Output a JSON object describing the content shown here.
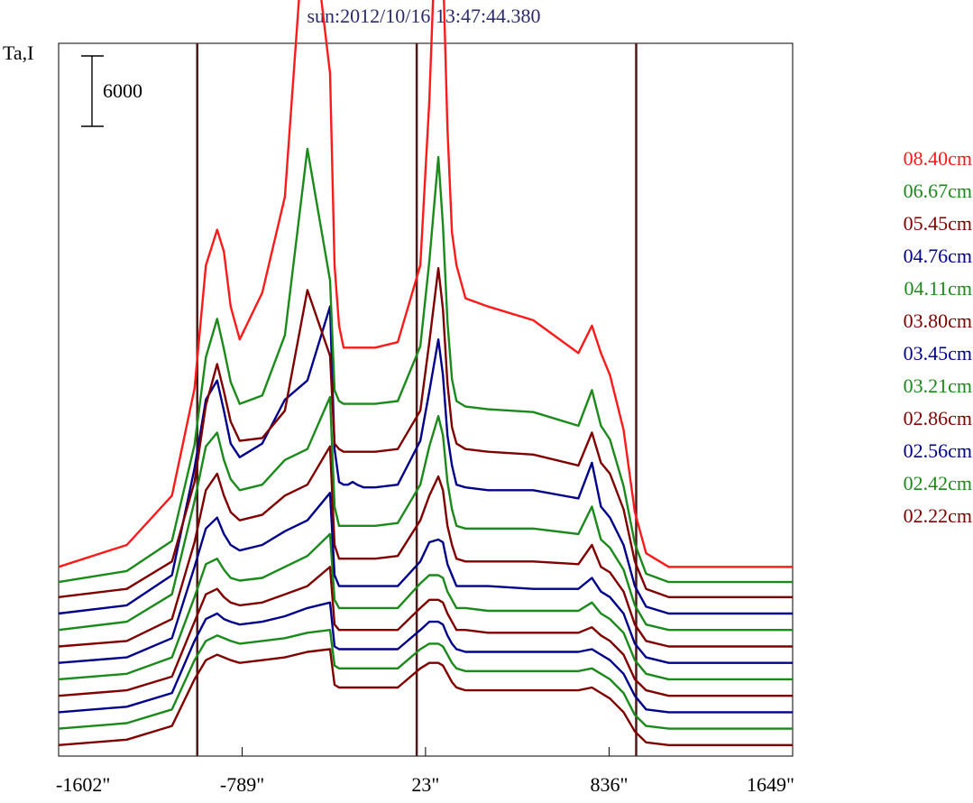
{
  "chart_data": {
    "type": "line",
    "title": "sun:2012/10/16 13:47:44.380",
    "ylabel": "Ta,I",
    "scale_bar_label": "6000",
    "scale_bar_value": 6000,
    "xlabel": "",
    "xlim": [
      -1602,
      1649
    ],
    "x_ticks": [
      {
        "value": -1602,
        "label": "-1602\""
      },
      {
        "value": -789,
        "label": "-789\""
      },
      {
        "value": 23,
        "label": "23\""
      },
      {
        "value": 836,
        "label": "836\""
      },
      {
        "value": 1649,
        "label": "1649\""
      }
    ],
    "vertical_markers": [
      -988,
      -16,
      956
    ],
    "grid": false,
    "legend_position": "right",
    "colors": {
      "red": "#ff1a1a",
      "green": "#1a8a1a",
      "darkred": "#800000",
      "navy": "#00008b",
      "marker": "#4d1a1a",
      "title": "#2b2b6b",
      "frame": "#000000"
    },
    "legend": [
      {
        "label": "08.40cm",
        "color": "#ff1a1a"
      },
      {
        "label": "06.67cm",
        "color": "#1a8a1a"
      },
      {
        "label": "05.45cm",
        "color": "#800000"
      },
      {
        "label": "04.76cm",
        "color": "#00008b"
      },
      {
        "label": "04.11cm",
        "color": "#1a8a1a"
      },
      {
        "label": "03.80cm",
        "color": "#800000"
      },
      {
        "label": "03.45cm",
        "color": "#00008b"
      },
      {
        "label": "03.21cm",
        "color": "#1a8a1a"
      },
      {
        "label": "02.86cm",
        "color": "#800000"
      },
      {
        "label": "02.56cm",
        "color": "#00008b"
      },
      {
        "label": "02.42cm",
        "color": "#1a8a1a"
      },
      {
        "label": "02.22cm",
        "color": "#800000"
      }
    ],
    "profile_x": [
      -1602,
      -1300,
      -1100,
      -1000,
      -950,
      -900,
      -870,
      -840,
      -800,
      -700,
      -600,
      -500,
      -400,
      -380,
      -360,
      -340,
      -320,
      -300,
      -280,
      -250,
      -200,
      -100,
      0,
      40,
      80,
      100,
      120,
      140,
      160,
      200,
      300,
      500,
      700,
      760,
      800,
      840,
      900,
      950,
      1000,
      1100,
      1300,
      1649
    ],
    "series": [
      {
        "color": "#ff1a1a",
        "values": [
          0,
          800,
          2600,
          6500,
          11000,
          12300,
          11500,
          9500,
          8300,
          10000,
          13500,
          25000,
          18000,
          11000,
          8800,
          8000,
          8000,
          8000,
          8000,
          8000,
          8000,
          8200,
          11000,
          17000,
          26000,
          22000,
          16000,
          12200,
          11000,
          9800,
          9500,
          9000,
          7800,
          8800,
          7800,
          7000,
          5000,
          2000,
          500,
          0,
          0,
          0
        ]
      },
      {
        "color": "#1a8a1a",
        "values": [
          0,
          400,
          1500,
          5000,
          8200,
          9600,
          8500,
          7300,
          6500,
          6800,
          9000,
          15800,
          11000,
          7000,
          6600,
          6500,
          6500,
          6500,
          6500,
          6500,
          6500,
          6600,
          8600,
          11700,
          15500,
          13000,
          9500,
          7400,
          6600,
          6400,
          6300,
          6200,
          5700,
          7000,
          5700,
          5200,
          3500,
          1400,
          300,
          0,
          0,
          0
        ]
      },
      {
        "color": "#800000",
        "values": [
          0,
          300,
          1300,
          4200,
          7000,
          8500,
          7500,
          6400,
          5700,
          5800,
          6800,
          11200,
          8800,
          5600,
          5400,
          5300,
          5300,
          5300,
          5300,
          5300,
          5300,
          5400,
          6800,
          9300,
          12000,
          10500,
          7800,
          6200,
          5600,
          5400,
          5300,
          5200,
          4800,
          6000,
          4900,
          4500,
          3200,
          1300,
          300,
          0,
          0,
          0
        ]
      },
      {
        "color": "#00008b",
        "values": [
          0,
          300,
          1400,
          5300,
          7800,
          8500,
          7400,
          6200,
          5700,
          6200,
          7800,
          8500,
          11200,
          6000,
          4800,
          4700,
          4700,
          4800,
          4700,
          4600,
          4600,
          4700,
          6300,
          8100,
          10000,
          8700,
          6500,
          5400,
          4700,
          4600,
          4500,
          4500,
          4200,
          5500,
          3900,
          3500,
          2500,
          1000,
          250,
          0,
          0,
          0
        ]
      },
      {
        "color": "#1a8a1a",
        "values": [
          0,
          300,
          1300,
          4700,
          6700,
          7200,
          6200,
          5500,
          5100,
          5300,
          6200,
          6600,
          8500,
          4500,
          3800,
          3800,
          3800,
          3800,
          3800,
          3800,
          3800,
          3900,
          5300,
          6700,
          7800,
          7100,
          5400,
          4400,
          3800,
          3700,
          3700,
          3700,
          3500,
          4500,
          3300,
          3000,
          2200,
          900,
          200,
          0,
          0,
          0
        ]
      },
      {
        "color": "#800000",
        "values": [
          0,
          200,
          1000,
          3800,
          5700,
          6300,
          5500,
          4900,
          4600,
          4800,
          5500,
          5900,
          7300,
          3700,
          3200,
          3200,
          3200,
          3200,
          3200,
          3200,
          3200,
          3300,
          4600,
          5500,
          6200,
          5700,
          4400,
          3700,
          3200,
          3100,
          3100,
          3100,
          3000,
          3700,
          2900,
          2700,
          2000,
          800,
          200,
          0,
          0,
          0
        ]
      },
      {
        "color": "#00008b",
        "values": [
          0,
          200,
          900,
          3500,
          4900,
          5300,
          4700,
          4300,
          4100,
          4300,
          4800,
          5200,
          6200,
          3200,
          2800,
          2800,
          2800,
          2800,
          2800,
          2800,
          2800,
          2800,
          3700,
          4400,
          4500,
          4400,
          3600,
          3200,
          2800,
          2800,
          2800,
          2700,
          2700,
          3100,
          2600,
          2400,
          1800,
          700,
          200,
          0,
          0,
          0
        ]
      },
      {
        "color": "#1a8a1a",
        "values": [
          0,
          200,
          800,
          3000,
          4200,
          4400,
          4000,
          3700,
          3600,
          3700,
          4100,
          4500,
          5300,
          2900,
          2600,
          2600,
          2600,
          2600,
          2600,
          2600,
          2600,
          2600,
          3500,
          3800,
          3800,
          3700,
          3200,
          2900,
          2600,
          2600,
          2500,
          2500,
          2500,
          2800,
          2400,
          2200,
          1700,
          700,
          200,
          0,
          0,
          0
        ]
      },
      {
        "color": "#800000",
        "values": [
          0,
          200,
          700,
          2700,
          3700,
          3900,
          3600,
          3400,
          3300,
          3400,
          3700,
          4000,
          4700,
          2600,
          2400,
          2400,
          2400,
          2400,
          2400,
          2400,
          2400,
          2400,
          3200,
          3500,
          3500,
          3400,
          3000,
          2700,
          2400,
          2400,
          2300,
          2300,
          2300,
          2500,
          2200,
          2000,
          1500,
          600,
          200,
          0,
          0,
          0
        ]
      },
      {
        "color": "#00008b",
        "values": [
          0,
          200,
          700,
          2600,
          3400,
          3600,
          3400,
          3300,
          3200,
          3300,
          3500,
          3800,
          4000,
          2400,
          2300,
          2300,
          2300,
          2300,
          2300,
          2300,
          2300,
          2300,
          3000,
          3300,
          3300,
          3200,
          2800,
          2500,
          2300,
          2200,
          2200,
          2200,
          2200,
          2300,
          2100,
          1900,
          1400,
          600,
          100,
          0,
          0,
          0
        ]
      },
      {
        "color": "#1a8a1a",
        "values": [
          0,
          200,
          700,
          2500,
          3200,
          3400,
          3300,
          3200,
          3100,
          3200,
          3300,
          3500,
          3600,
          2300,
          2200,
          2200,
          2200,
          2200,
          2200,
          2200,
          2200,
          2200,
          2900,
          3100,
          3100,
          3000,
          2700,
          2400,
          2200,
          2100,
          2100,
          2100,
          2100,
          2200,
          2000,
          1800,
          1300,
          500,
          100,
          0,
          0,
          0
        ]
      },
      {
        "color": "#800000",
        "values": [
          0,
          200,
          700,
          2400,
          3100,
          3300,
          3200,
          3100,
          3000,
          3100,
          3200,
          3400,
          3500,
          2200,
          2100,
          2100,
          2100,
          2100,
          2100,
          2100,
          2100,
          2100,
          2800,
          3000,
          3000,
          2900,
          2600,
          2300,
          2100,
          2000,
          2000,
          2000,
          2000,
          2100,
          1900,
          1700,
          1200,
          500,
          100,
          0,
          0,
          0
        ]
      }
    ],
    "baselines": [
      -100,
      -650,
      -1200,
      -1800,
      -2400,
      -3000,
      -3600,
      -4200,
      -4800,
      -5400,
      -6000,
      -6600
    ],
    "ylim": [
      -7000,
      19000
    ]
  }
}
